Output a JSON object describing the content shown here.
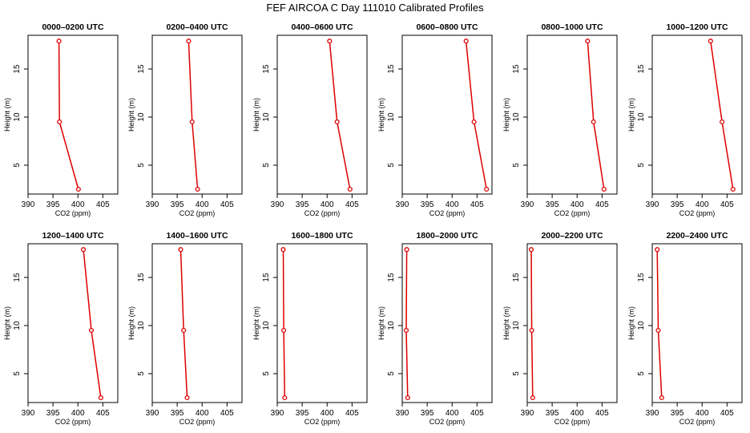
{
  "figure": {
    "title": "FEF AIRCOA C  Day 111010  Calibrated Profiles"
  },
  "colors": {
    "series": "#dd0000",
    "axis": "#000000",
    "background": "#ffffff"
  },
  "chart_data": [
    {
      "type": "line",
      "title": "0000–0200 UTC",
      "xlabel": "CO2 (ppm)",
      "ylabel": "Height (m)",
      "xlim": [
        390,
        408
      ],
      "ylim": [
        2,
        18.5
      ],
      "xticks": [
        390,
        395,
        400,
        405
      ],
      "yticks": [
        5,
        10,
        15
      ],
      "series": [
        {
          "name": "profile",
          "x": [
            396.2,
            396.3,
            400.1
          ],
          "y": [
            17.9,
            9.5,
            2.5
          ]
        }
      ]
    },
    {
      "type": "line",
      "title": "0200–0400 UTC",
      "xlabel": "CO2 (ppm)",
      "ylabel": "Height (m)",
      "xlim": [
        390,
        408
      ],
      "ylim": [
        2,
        18.5
      ],
      "xticks": [
        390,
        395,
        400,
        405
      ],
      "yticks": [
        5,
        10,
        15
      ],
      "series": [
        {
          "name": "profile",
          "x": [
            397.3,
            398.0,
            399.1
          ],
          "y": [
            17.9,
            9.5,
            2.5
          ]
        }
      ]
    },
    {
      "type": "line",
      "title": "0400–0600 UTC",
      "xlabel": "CO2 (ppm)",
      "ylabel": "Height (m)",
      "xlim": [
        390,
        408
      ],
      "ylim": [
        2,
        18.5
      ],
      "xticks": [
        390,
        395,
        400,
        405
      ],
      "yticks": [
        5,
        10,
        15
      ],
      "series": [
        {
          "name": "profile",
          "x": [
            400.5,
            402.0,
            404.6
          ],
          "y": [
            17.9,
            9.5,
            2.5
          ]
        }
      ]
    },
    {
      "type": "line",
      "title": "0600–0800 UTC",
      "xlabel": "CO2 (ppm)",
      "ylabel": "Height (m)",
      "xlim": [
        390,
        408
      ],
      "ylim": [
        2,
        18.5
      ],
      "xticks": [
        390,
        395,
        400,
        405
      ],
      "yticks": [
        5,
        10,
        15
      ],
      "series": [
        {
          "name": "profile",
          "x": [
            402.8,
            404.4,
            406.9
          ],
          "y": [
            17.9,
            9.5,
            2.5
          ]
        }
      ]
    },
    {
      "type": "line",
      "title": "0800–1000 UTC",
      "xlabel": "CO2 (ppm)",
      "ylabel": "Height (m)",
      "xlim": [
        390,
        408
      ],
      "ylim": [
        2,
        18.5
      ],
      "xticks": [
        390,
        395,
        400,
        405
      ],
      "yticks": [
        5,
        10,
        15
      ],
      "series": [
        {
          "name": "profile",
          "x": [
            402.1,
            403.3,
            405.4
          ],
          "y": [
            17.9,
            9.5,
            2.5
          ]
        }
      ]
    },
    {
      "type": "line",
      "title": "1000–1200 UTC",
      "xlabel": "CO2 (ppm)",
      "ylabel": "Height (m)",
      "xlim": [
        390,
        408
      ],
      "ylim": [
        2,
        18.5
      ],
      "xticks": [
        390,
        395,
        400,
        405
      ],
      "yticks": [
        5,
        10,
        15
      ],
      "series": [
        {
          "name": "profile",
          "x": [
            401.7,
            404.0,
            406.2
          ],
          "y": [
            17.9,
            9.5,
            2.5
          ]
        }
      ]
    },
    {
      "type": "line",
      "title": "1200–1400 UTC",
      "xlabel": "CO2 (ppm)",
      "ylabel": "Height (m)",
      "xlim": [
        390,
        408
      ],
      "ylim": [
        2,
        18.5
      ],
      "xticks": [
        390,
        395,
        400,
        405
      ],
      "yticks": [
        5,
        10,
        15
      ],
      "series": [
        {
          "name": "profile",
          "x": [
            401.1,
            402.7,
            404.6
          ],
          "y": [
            17.9,
            9.5,
            2.5
          ]
        }
      ]
    },
    {
      "type": "line",
      "title": "1400–1600 UTC",
      "xlabel": "CO2 (ppm)",
      "ylabel": "Height (m)",
      "xlim": [
        390,
        408
      ],
      "ylim": [
        2,
        18.5
      ],
      "xticks": [
        390,
        395,
        400,
        405
      ],
      "yticks": [
        5,
        10,
        15
      ],
      "series": [
        {
          "name": "profile",
          "x": [
            395.7,
            396.3,
            397.0
          ],
          "y": [
            17.9,
            9.5,
            2.5
          ]
        }
      ]
    },
    {
      "type": "line",
      "title": "1600–1800 UTC",
      "xlabel": "CO2 (ppm)",
      "ylabel": "Height (m)",
      "xlim": [
        390,
        408
      ],
      "ylim": [
        2,
        18.5
      ],
      "xticks": [
        390,
        395,
        400,
        405
      ],
      "yticks": [
        5,
        10,
        15
      ],
      "series": [
        {
          "name": "profile",
          "x": [
            391.2,
            391.3,
            391.5
          ],
          "y": [
            17.9,
            9.5,
            2.5
          ]
        }
      ]
    },
    {
      "type": "line",
      "title": "1800–2000 UTC",
      "xlabel": "CO2 (ppm)",
      "ylabel": "Height (m)",
      "xlim": [
        390,
        408
      ],
      "ylim": [
        2,
        18.5
      ],
      "xticks": [
        390,
        395,
        400,
        405
      ],
      "yticks": [
        5,
        10,
        15
      ],
      "series": [
        {
          "name": "profile",
          "x": [
            390.9,
            390.8,
            391.1
          ],
          "y": [
            17.9,
            9.5,
            2.5
          ]
        }
      ]
    },
    {
      "type": "line",
      "title": "2000–2200 UTC",
      "xlabel": "CO2 (ppm)",
      "ylabel": "Height (m)",
      "xlim": [
        390,
        408
      ],
      "ylim": [
        2,
        18.5
      ],
      "xticks": [
        390,
        395,
        400,
        405
      ],
      "yticks": [
        5,
        10,
        15
      ],
      "series": [
        {
          "name": "profile",
          "x": [
            390.8,
            390.9,
            391.1
          ],
          "y": [
            17.9,
            9.5,
            2.5
          ]
        }
      ]
    },
    {
      "type": "line",
      "title": "2200–2400 UTC",
      "xlabel": "CO2 (ppm)",
      "ylabel": "Height (m)",
      "xlim": [
        390,
        408
      ],
      "ylim": [
        2,
        18.5
      ],
      "xticks": [
        390,
        395,
        400,
        405
      ],
      "yticks": [
        5,
        10,
        15
      ],
      "series": [
        {
          "name": "profile",
          "x": [
            391.0,
            391.2,
            391.9
          ],
          "y": [
            17.9,
            9.5,
            2.5
          ]
        }
      ]
    }
  ]
}
